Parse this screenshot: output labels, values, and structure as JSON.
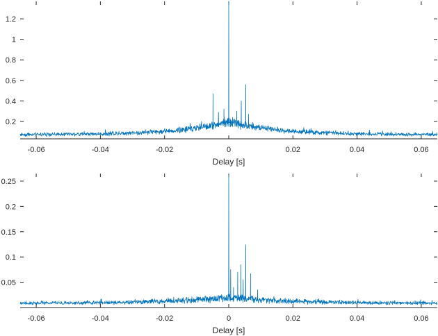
{
  "chart_data": [
    {
      "type": "line",
      "title": "",
      "xlabel": "Delay [s]",
      "ylabel": "",
      "xlim": [
        -0.065,
        0.065
      ],
      "ylim": [
        0.03,
        1.37
      ],
      "xticks": [
        -0.06,
        -0.04,
        -0.02,
        0,
        0.02,
        0.04,
        0.06
      ],
      "xtick_labels": [
        "-0.06",
        "-0.04",
        "-0.02",
        "0",
        "0.02",
        "0.04",
        "0.06"
      ],
      "yticks": [
        0.2,
        0.4,
        0.6,
        0.8,
        1,
        1.2
      ],
      "ytick_labels": [
        "0.2",
        "0.4",
        "0.6",
        "0.8",
        "1",
        "1.2"
      ],
      "grid": false,
      "series": [
        {
          "color": "#0072bd",
          "baseline": 0.07,
          "envelope_peak": 0.13,
          "envelope_width": 0.015,
          "noise": 0.02,
          "peaks": [
            {
              "x": 0.0,
              "y": 1.37
            },
            {
              "x": -0.0049,
              "y": 0.47
            },
            {
              "x": 0.0053,
              "y": 0.56
            },
            {
              "x": 0.0039,
              "y": 0.4
            },
            {
              "x": -0.0032,
              "y": 0.29
            },
            {
              "x": 0.0025,
              "y": 0.3
            },
            {
              "x": -0.0015,
              "y": 0.32
            },
            {
              "x": 0.0062,
              "y": 0.27
            },
            {
              "x": 0.0005,
              "y": 0.22
            },
            {
              "x": -0.0085,
              "y": 0.2
            },
            {
              "x": 0.0012,
              "y": 0.24
            }
          ]
        }
      ]
    },
    {
      "type": "line",
      "title": "",
      "xlabel": "Delay [s]",
      "ylabel": "",
      "xlim": [
        -0.065,
        0.065
      ],
      "ylim": [
        0.0,
        0.265
      ],
      "xticks": [
        -0.06,
        -0.04,
        -0.02,
        0,
        0.02,
        0.04,
        0.06
      ],
      "xtick_labels": [
        "-0.06",
        "-0.04",
        "-0.02",
        "0",
        "0.02",
        "0.04",
        "0.06"
      ],
      "yticks": [
        0.05,
        0.1,
        0.15,
        0.2,
        0.25
      ],
      "ytick_labels": [
        "0.05",
        "0.1",
        "0.15",
        "0.2",
        "0.25"
      ],
      "grid": false,
      "series": [
        {
          "color": "#0072bd",
          "baseline": 0.008,
          "envelope_peak": 0.012,
          "envelope_width": 0.02,
          "noise": 0.0035,
          "peaks": [
            {
              "x": 0.0,
              "y": 0.262
            },
            {
              "x": 0.0053,
              "y": 0.124
            },
            {
              "x": 0.0038,
              "y": 0.085
            },
            {
              "x": 0.0028,
              "y": 0.07
            },
            {
              "x": 0.0068,
              "y": 0.067
            },
            {
              "x": 0.0045,
              "y": 0.055
            },
            {
              "x": 0.0006,
              "y": 0.075
            },
            {
              "x": 0.0015,
              "y": 0.04
            },
            {
              "x": 0.009,
              "y": 0.035
            }
          ]
        }
      ]
    }
  ]
}
